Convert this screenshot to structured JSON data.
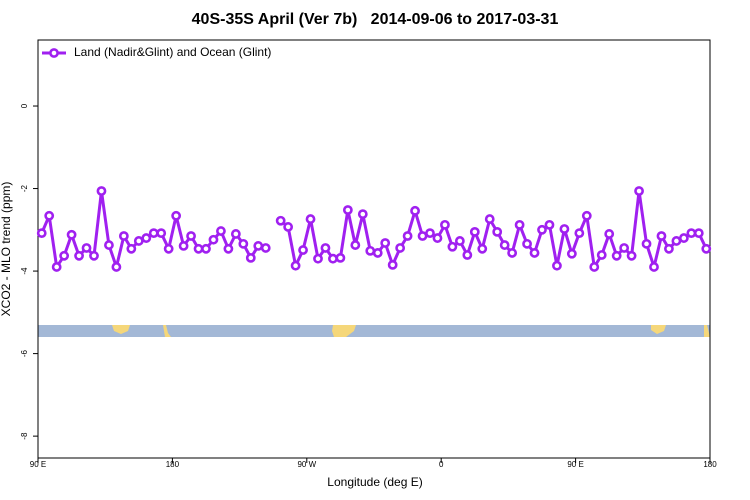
{
  "chart_data": {
    "type": "line",
    "title": "40S-35S April (Ver 7b)   2014-09-06 to 2017-03-31",
    "x_label": "Longitude (deg E)",
    "y_label": "XCO2 - MLO trend (ppm)",
    "x": [
      92.5,
      97.5,
      102.5,
      107.5,
      112.5,
      117.5,
      122.5,
      127.5,
      132.5,
      137.5,
      142.5,
      147.5,
      152.5,
      157.5,
      162.5,
      167.5,
      172.5,
      177.5,
      182.5,
      187.5,
      192.5,
      197.5,
      202.5,
      207.5,
      212.5,
      217.5,
      222.5,
      227.5,
      232.5,
      237.5,
      242.5,
      247.5,
      252.5,
      257.5,
      262.5,
      267.5,
      272.5,
      277.5,
      282.5,
      287.5,
      292.5,
      297.5,
      302.5,
      307.5,
      312.5,
      317.5,
      322.5,
      327.5,
      332.5,
      337.5,
      342.5,
      347.5,
      352.5,
      357.5,
      362.5,
      367.5,
      372.5,
      377.5,
      382.5,
      387.5,
      392.5,
      397.5,
      402.5,
      407.5,
      412.5,
      417.5,
      422.5,
      427.5,
      432.5,
      437.5,
      442.5,
      447.5,
      452.5,
      457.5,
      462.5,
      467.5,
      472.5,
      477.5,
      482.5,
      487.5,
      492.5,
      497.5,
      502.5,
      507.5,
      512.5,
      517.5,
      522.5,
      527.5,
      532.5,
      537.5
    ],
    "series": [
      {
        "name": "Land (Nadir&Glint) and Ocean (Glint)",
        "color": "#a020f0",
        "values": [
          -3.08,
          -2.66,
          -3.9,
          -3.63,
          -3.12,
          -3.63,
          -3.44,
          -3.63,
          -2.06,
          -3.37,
          -3.9,
          -3.15,
          -3.46,
          -3.27,
          -3.2,
          -3.08,
          -3.08,
          -3.46,
          -2.66,
          -3.39,
          -3.15,
          -3.46,
          -3.46,
          -3.24,
          -3.03,
          -3.46,
          -3.1,
          -3.34,
          -3.68,
          -3.39,
          -3.44,
          null,
          -2.78,
          -2.93,
          -3.87,
          -3.49,
          -2.74,
          -3.7,
          -3.44,
          -3.7,
          -3.68,
          -2.52,
          -3.37,
          -2.62,
          -3.51,
          -3.56,
          -3.32,
          -3.85,
          -3.44,
          -3.15,
          -2.54,
          -3.15,
          -3.08,
          -3.2,
          -2.88,
          -3.41,
          -3.27,
          -3.61,
          -3.05,
          -3.46,
          -2.74,
          -3.05,
          -3.37,
          -3.56,
          -2.88,
          -3.34,
          -3.56,
          -3.0,
          -2.88,
          -3.87,
          -2.98,
          -3.58,
          -3.08,
          -2.66,
          -3.9,
          -3.61,
          -3.1,
          -3.63,
          -3.44,
          -3.63,
          -2.06,
          -3.34,
          -3.9,
          -3.15,
          -3.46,
          -3.27,
          -3.2,
          -3.08,
          -3.08,
          -3.46
        ]
      }
    ],
    "xlim": [
      90,
      540
    ],
    "xticks": [
      {
        "value": 90,
        "label": "90 E"
      },
      180,
      {
        "value": 270,
        "label": "90 W"
      },
      {
        "value": 360,
        "label": "0"
      },
      {
        "value": 450,
        "label": "90 E"
      },
      {
        "value": 540,
        "label": "180"
      }
    ],
    "ylim": [
      -8.53,
      1.6
    ],
    "yticks": [
      0,
      -2,
      -4,
      -6,
      -8
    ],
    "grid": false,
    "legend": "top-left"
  }
}
